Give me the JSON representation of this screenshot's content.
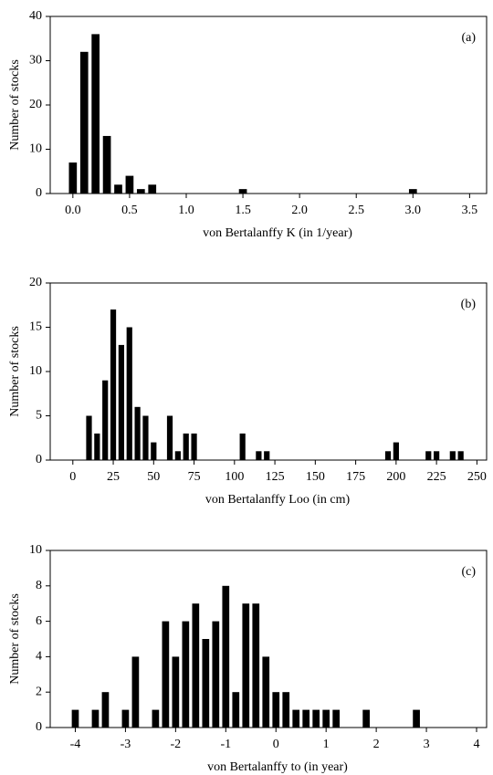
{
  "chart_data": [
    {
      "type": "histogram",
      "annotation": "(a)",
      "xlabel": "von Bertalanffy K (in 1/year)",
      "ylabel": "Number of stocks",
      "color": "#000000",
      "bins": [
        -0.05,
        0.05,
        0.15,
        0.25,
        0.35,
        0.45,
        0.55,
        0.65,
        0.75,
        0.85,
        0.95,
        1.05,
        1.15,
        1.25,
        1.35,
        1.45,
        1.55,
        1.65,
        1.75,
        1.85,
        1.95,
        2.05,
        2.15,
        2.25,
        2.35,
        2.45,
        2.55,
        2.65,
        2.75,
        2.85,
        2.95,
        3.05,
        3.15,
        3.25,
        3.35,
        3.45,
        3.55
      ],
      "counts": [
        7,
        32,
        36,
        13,
        2,
        4,
        1,
        2,
        0,
        0,
        0,
        0,
        0,
        0,
        0,
        1,
        0,
        0,
        0,
        0,
        0,
        0,
        0,
        0,
        0,
        0,
        0,
        0,
        0,
        0,
        1,
        0,
        0,
        0,
        0,
        0
      ],
      "xlim": [
        -0.2,
        3.65
      ],
      "xticks": [
        {
          "value": 0,
          "label": "0.0"
        },
        0.5,
        {
          "value": 1,
          "label": "1.0"
        },
        1.5,
        {
          "value": 2,
          "label": "2.0"
        },
        2.5,
        {
          "value": 3,
          "label": "3.0"
        },
        3.5
      ],
      "ylim": [
        0,
        40
      ],
      "yticks": [
        0,
        10,
        20,
        30,
        40
      ]
    },
    {
      "type": "histogram",
      "annotation": "(b)",
      "xlabel": "von Bertalanffy Loo (in cm)",
      "ylabel": "Number of stocks",
      "color": "#000000",
      "bins": [
        -2.5,
        2.5,
        7.5,
        12.5,
        17.5,
        22.5,
        27.5,
        32.5,
        37.5,
        42.5,
        47.5,
        52.5,
        57.5,
        62.5,
        67.5,
        72.5,
        77.5,
        82.5,
        87.5,
        92.5,
        97.5,
        102.5,
        107.5,
        112.5,
        117.5,
        122.5,
        127.5,
        132.5,
        137.5,
        142.5,
        147.5,
        152.5,
        157.5,
        162.5,
        167.5,
        172.5,
        177.5,
        182.5,
        187.5,
        192.5,
        197.5,
        202.5,
        207.5,
        212.5,
        217.5,
        222.5,
        227.5,
        232.5,
        237.5,
        242.5,
        247.5,
        252.5
      ],
      "counts": [
        0,
        0,
        5,
        3,
        9,
        17,
        13,
        15,
        6,
        5,
        2,
        0,
        5,
        1,
        3,
        3,
        0,
        0,
        0,
        0,
        0,
        3,
        0,
        1,
        1,
        0,
        0,
        0,
        0,
        0,
        0,
        0,
        0,
        0,
        0,
        0,
        0,
        0,
        0,
        1,
        2,
        0,
        0,
        0,
        1,
        1,
        0,
        1,
        1,
        0,
        0
      ],
      "xlim": [
        -14,
        256
      ],
      "xticks": [
        0,
        25,
        50,
        75,
        100,
        125,
        150,
        175,
        200,
        225,
        250
      ],
      "ylim": [
        0,
        20
      ],
      "yticks": [
        0,
        5,
        10,
        15,
        20
      ]
    },
    {
      "type": "histogram",
      "annotation": "(c)",
      "xlabel": "von Bertalanffy to (in year)",
      "ylabel": "Number of stocks",
      "color": "#000000",
      "bins": [
        -4.1,
        -3.9,
        -3.7,
        -3.5,
        -3.3,
        -3.1,
        -2.9,
        -2.7,
        -2.5,
        -2.3,
        -2.1,
        -1.9,
        -1.7,
        -1.5,
        -1.3,
        -1.1,
        -0.9,
        -0.7,
        -0.5,
        -0.3,
        -0.1,
        0.1,
        0.3,
        0.5,
        0.7,
        0.9,
        1.1,
        1.3,
        1.5,
        1.7,
        1.9,
        2.1,
        2.3,
        2.5,
        2.7,
        2.9,
        3.1,
        3.3,
        3.5,
        3.7,
        3.9,
        4.1
      ],
      "counts": [
        1,
        0,
        1,
        2,
        0,
        1,
        4,
        0,
        1,
        6,
        4,
        6,
        7,
        5,
        6,
        8,
        2,
        7,
        7,
        4,
        2,
        2,
        1,
        1,
        1,
        1,
        1,
        0,
        0,
        1,
        0,
        0,
        0,
        0,
        1,
        0,
        0,
        0,
        0,
        0,
        0
      ],
      "xlim": [
        -4.5,
        4.2
      ],
      "xticks": [
        -4,
        -3,
        -2,
        -1,
        0,
        1,
        2,
        3,
        4
      ],
      "ylim": [
        0,
        10
      ],
      "yticks": [
        0,
        2,
        4,
        6,
        8,
        10
      ]
    }
  ]
}
